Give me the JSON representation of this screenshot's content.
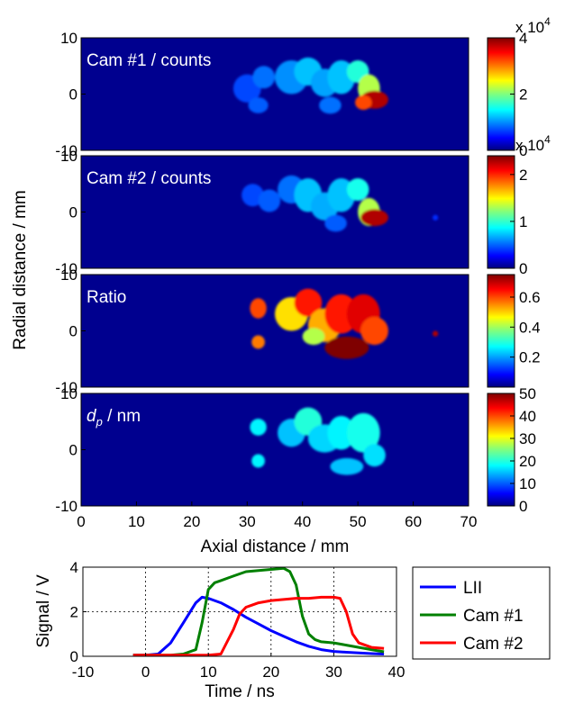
{
  "chart_data": [
    {
      "type": "heatmap",
      "panel_label": "Cam #1 / counts",
      "colorbar": {
        "ticks": [
          "4",
          "2",
          "0"
        ],
        "ticks_values": [
          40000,
          20000,
          0
        ],
        "range": [
          0,
          40000
        ],
        "multiplier_label": "x 10",
        "multiplier_exp": "4"
      },
      "yticks": [
        "10",
        "0",
        "-10"
      ],
      "ytick_values": [
        10,
        0,
        -10
      ],
      "xlim": [
        0,
        70
      ],
      "ylim": [
        -10,
        10
      ],
      "blobs": [
        {
          "x": 30,
          "y": 1,
          "rx": 2.5,
          "ry": 2.5,
          "v": 0.18
        },
        {
          "x": 33,
          "y": 3,
          "rx": 2,
          "ry": 2,
          "v": 0.22
        },
        {
          "x": 32,
          "y": -2,
          "rx": 1.8,
          "ry": 1.4,
          "v": 0.2
        },
        {
          "x": 38,
          "y": 3,
          "rx": 3,
          "ry": 3,
          "v": 0.25
        },
        {
          "x": 41,
          "y": 4,
          "rx": 2.5,
          "ry": 2.5,
          "v": 0.3
        },
        {
          "x": 44,
          "y": 2,
          "rx": 2.5,
          "ry": 2.5,
          "v": 0.27
        },
        {
          "x": 47,
          "y": 3,
          "rx": 2.5,
          "ry": 3,
          "v": 0.3
        },
        {
          "x": 50,
          "y": 4,
          "rx": 2,
          "ry": 2,
          "v": 0.4
        },
        {
          "x": 52,
          "y": 1,
          "rx": 2,
          "ry": 2.5,
          "v": 0.55
        },
        {
          "x": 53,
          "y": -1,
          "rx": 2.5,
          "ry": 1.6,
          "v": 0.95
        },
        {
          "x": 51,
          "y": -1.5,
          "rx": 1.5,
          "ry": 1.3,
          "v": 0.8
        },
        {
          "x": 45,
          "y": -2,
          "rx": 2,
          "ry": 1.5,
          "v": 0.22
        }
      ]
    },
    {
      "type": "heatmap",
      "panel_label": "Cam #2 / counts",
      "colorbar": {
        "ticks": [
          "2",
          "1",
          "0"
        ],
        "ticks_values": [
          20000,
          10000,
          0
        ],
        "range": [
          0,
          24000
        ],
        "multiplier_label": "x 10",
        "multiplier_exp": "4"
      },
      "yticks": [
        "10",
        "0",
        "-10"
      ],
      "ytick_values": [
        10,
        0,
        -10
      ],
      "xlim": [
        0,
        70
      ],
      "ylim": [
        -10,
        10
      ],
      "blobs": [
        {
          "x": 31,
          "y": 3,
          "rx": 2,
          "ry": 2,
          "v": 0.18
        },
        {
          "x": 34,
          "y": 2,
          "rx": 2,
          "ry": 2,
          "v": 0.2
        },
        {
          "x": 38,
          "y": 4,
          "rx": 2.5,
          "ry": 2.5,
          "v": 0.22
        },
        {
          "x": 41,
          "y": 3,
          "rx": 2.5,
          "ry": 3,
          "v": 0.3
        },
        {
          "x": 44,
          "y": 1,
          "rx": 2.5,
          "ry": 2.5,
          "v": 0.28
        },
        {
          "x": 47,
          "y": 3,
          "rx": 2.5,
          "ry": 3,
          "v": 0.3
        },
        {
          "x": 50,
          "y": 4,
          "rx": 2,
          "ry": 2,
          "v": 0.38
        },
        {
          "x": 52,
          "y": 0,
          "rx": 2,
          "ry": 2.5,
          "v": 0.55
        },
        {
          "x": 53,
          "y": -1,
          "rx": 2.5,
          "ry": 1.5,
          "v": 0.95
        },
        {
          "x": 46,
          "y": -2,
          "rx": 2,
          "ry": 1.5,
          "v": 0.2
        },
        {
          "x": 64,
          "y": -1,
          "rx": 0.5,
          "ry": 0.5,
          "v": 0.15
        }
      ]
    },
    {
      "type": "heatmap",
      "panel_label": "Ratio",
      "colorbar": {
        "ticks": [
          "0.6",
          "0.4",
          "0.2"
        ],
        "ticks_values": [
          0.6,
          0.4,
          0.2
        ],
        "range": [
          0,
          0.75
        ],
        "multiplier_label": "",
        "multiplier_exp": ""
      },
      "yticks": [
        "10",
        "0",
        "-10"
      ],
      "ytick_values": [
        10,
        0,
        -10
      ],
      "xlim": [
        0,
        70
      ],
      "ylim": [
        -10,
        10
      ],
      "blobs": [
        {
          "x": 32,
          "y": 4,
          "rx": 1.5,
          "ry": 1.8,
          "v": 0.8
        },
        {
          "x": 32,
          "y": -2,
          "rx": 1.2,
          "ry": 1.2,
          "v": 0.75
        },
        {
          "x": 38,
          "y": 3,
          "rx": 3,
          "ry": 3,
          "v": 0.65
        },
        {
          "x": 41,
          "y": 5,
          "rx": 2.5,
          "ry": 2.5,
          "v": 0.85
        },
        {
          "x": 44,
          "y": 1,
          "rx": 3,
          "ry": 3,
          "v": 0.7
        },
        {
          "x": 47,
          "y": 3,
          "rx": 3,
          "ry": 3.5,
          "v": 0.85
        },
        {
          "x": 51,
          "y": 3,
          "rx": 3,
          "ry": 3.5,
          "v": 0.9
        },
        {
          "x": 53,
          "y": 0,
          "rx": 2.5,
          "ry": 2.5,
          "v": 0.8
        },
        {
          "x": 48,
          "y": -3,
          "rx": 4,
          "ry": 2,
          "v": 1.0
        },
        {
          "x": 42,
          "y": -1,
          "rx": 2,
          "ry": 1.5,
          "v": 0.55
        },
        {
          "x": 64,
          "y": -0.5,
          "rx": 0.5,
          "ry": 0.5,
          "v": 0.95
        }
      ]
    },
    {
      "type": "heatmap",
      "panel_label": "d",
      "panel_label_sub": "p",
      "panel_label_suffix": " / nm",
      "colorbar": {
        "ticks": [
          "50",
          "40",
          "30",
          "20",
          "10",
          "0"
        ],
        "ticks_values": [
          50,
          40,
          30,
          20,
          10,
          0
        ],
        "range": [
          0,
          50
        ],
        "multiplier_label": "",
        "multiplier_exp": ""
      },
      "yticks": [
        "10",
        "0",
        "-10"
      ],
      "ytick_values": [
        10,
        0,
        -10
      ],
      "xticks": [
        "0",
        "10",
        "20",
        "30",
        "40",
        "50",
        "60",
        "70"
      ],
      "xtick_values": [
        0,
        10,
        20,
        30,
        40,
        50,
        60,
        70
      ],
      "xlabel": "Axial distance / mm",
      "xlim": [
        0,
        70
      ],
      "ylim": [
        -10,
        10
      ],
      "blobs": [
        {
          "x": 32,
          "y": 4,
          "rx": 1.5,
          "ry": 1.5,
          "v": 0.35
        },
        {
          "x": 32,
          "y": -2,
          "rx": 1.2,
          "ry": 1.2,
          "v": 0.35
        },
        {
          "x": 38,
          "y": 3,
          "rx": 2.5,
          "ry": 2.5,
          "v": 0.3
        },
        {
          "x": 41,
          "y": 5,
          "rx": 2.5,
          "ry": 2.5,
          "v": 0.4
        },
        {
          "x": 44,
          "y": 2,
          "rx": 3,
          "ry": 2.5,
          "v": 0.32
        },
        {
          "x": 47,
          "y": 3,
          "rx": 2.5,
          "ry": 3,
          "v": 0.35
        },
        {
          "x": 51,
          "y": 3,
          "rx": 3,
          "ry": 3.5,
          "v": 0.38
        },
        {
          "x": 48,
          "y": -3,
          "rx": 3,
          "ry": 1.5,
          "v": 0.3
        },
        {
          "x": 53,
          "y": -1,
          "rx": 2,
          "ry": 2,
          "v": 0.33
        }
      ]
    },
    {
      "type": "line",
      "xlabel": "Time / ns",
      "ylabel": "Signal / V",
      "xlim": [
        -10,
        40
      ],
      "ylim": [
        0,
        4
      ],
      "xticks": [
        "-10",
        "0",
        "10",
        "20",
        "30",
        "40"
      ],
      "xtick_values": [
        -10,
        0,
        10,
        20,
        30,
        40
      ],
      "yticks": [
        "4",
        "2",
        "0"
      ],
      "ytick_values": [
        4,
        2,
        0
      ],
      "grid": true,
      "legend_position": "right",
      "series": [
        {
          "name": "LII",
          "color": "#0000ff",
          "x": [
            -2,
            0,
            2,
            4,
            6,
            8,
            9,
            10,
            12,
            14,
            16,
            18,
            20,
            22,
            24,
            26,
            28,
            30,
            32,
            34,
            36,
            38
          ],
          "y": [
            0.05,
            0.05,
            0.1,
            0.6,
            1.5,
            2.4,
            2.65,
            2.6,
            2.4,
            2.1,
            1.75,
            1.45,
            1.15,
            0.9,
            0.65,
            0.45,
            0.3,
            0.22,
            0.18,
            0.15,
            0.12,
            0.1
          ]
        },
        {
          "name": "Cam #1",
          "color": "#008000",
          "x": [
            -2,
            4,
            6,
            8,
            9,
            10,
            11,
            12,
            14,
            16,
            18,
            20,
            22,
            23,
            24,
            25,
            26,
            27,
            28,
            30,
            32,
            34,
            36,
            38
          ],
          "y": [
            0.05,
            0.05,
            0.1,
            0.3,
            1.5,
            3.0,
            3.3,
            3.4,
            3.6,
            3.8,
            3.85,
            3.9,
            3.95,
            3.8,
            3.2,
            1.8,
            1.0,
            0.75,
            0.65,
            0.6,
            0.5,
            0.4,
            0.3,
            0.2
          ]
        },
        {
          "name": "Cam #2",
          "color": "#ff0000",
          "x": [
            -2,
            10,
            12,
            14,
            15,
            16,
            17,
            18,
            20,
            22,
            24,
            26,
            28,
            30,
            31,
            32,
            33,
            34,
            36,
            38
          ],
          "y": [
            0.05,
            0.05,
            0.1,
            1.2,
            1.9,
            2.2,
            2.3,
            2.4,
            2.5,
            2.55,
            2.6,
            2.6,
            2.65,
            2.65,
            2.6,
            2.0,
            1.0,
            0.6,
            0.4,
            0.35
          ]
        }
      ]
    }
  ],
  "ylabel_maps": "Radial distance / mm"
}
